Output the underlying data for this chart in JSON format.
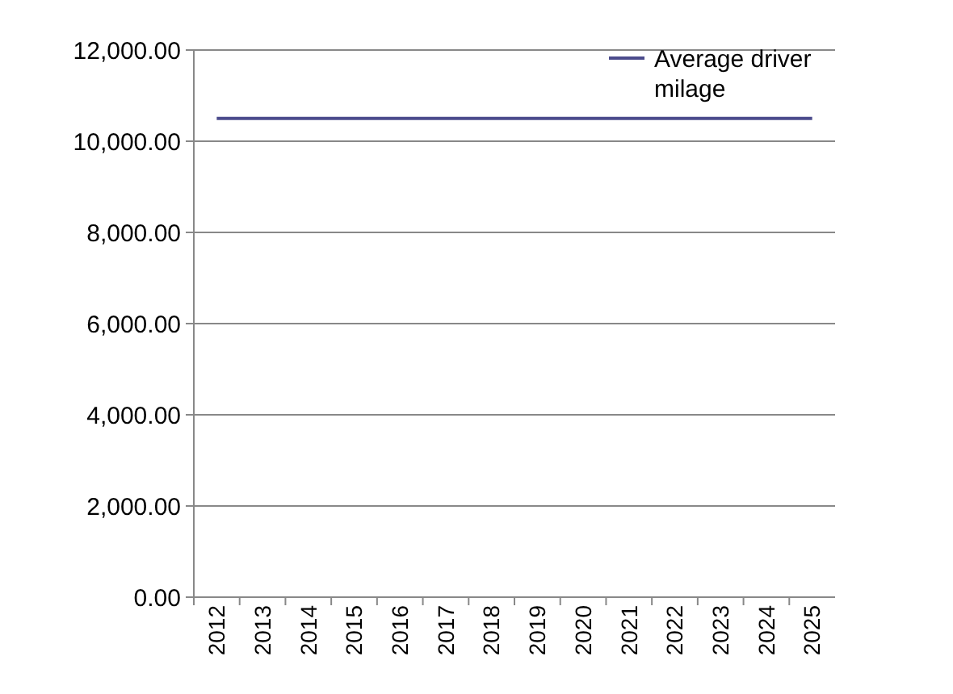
{
  "chart_data": {
    "type": "line",
    "categories": [
      "2012",
      "2013",
      "2014",
      "2015",
      "2016",
      "2017",
      "2018",
      "2019",
      "2020",
      "2021",
      "2022",
      "2023",
      "2024",
      "2025"
    ],
    "series": [
      {
        "name": "Average driver milage",
        "color": "#4b4b8c",
        "values": [
          10500,
          10500,
          10500,
          10500,
          10500,
          10500,
          10500,
          10500,
          10500,
          10500,
          10500,
          10500,
          10500,
          10500
        ]
      }
    ],
    "ylim": [
      0,
      12000
    ],
    "yticks": [
      {
        "value": 0,
        "label": "0.00"
      },
      {
        "value": 2000,
        "label": "2,000.00"
      },
      {
        "value": 4000,
        "label": "4,000.00"
      },
      {
        "value": 6000,
        "label": "6,000.00"
      },
      {
        "value": 8000,
        "label": "8,000.00"
      },
      {
        "value": 10000,
        "label": "10,000.00"
      },
      {
        "value": 12000,
        "label": "12,000.00"
      }
    ],
    "grid": "y",
    "legend": "top right",
    "marker": "none"
  }
}
